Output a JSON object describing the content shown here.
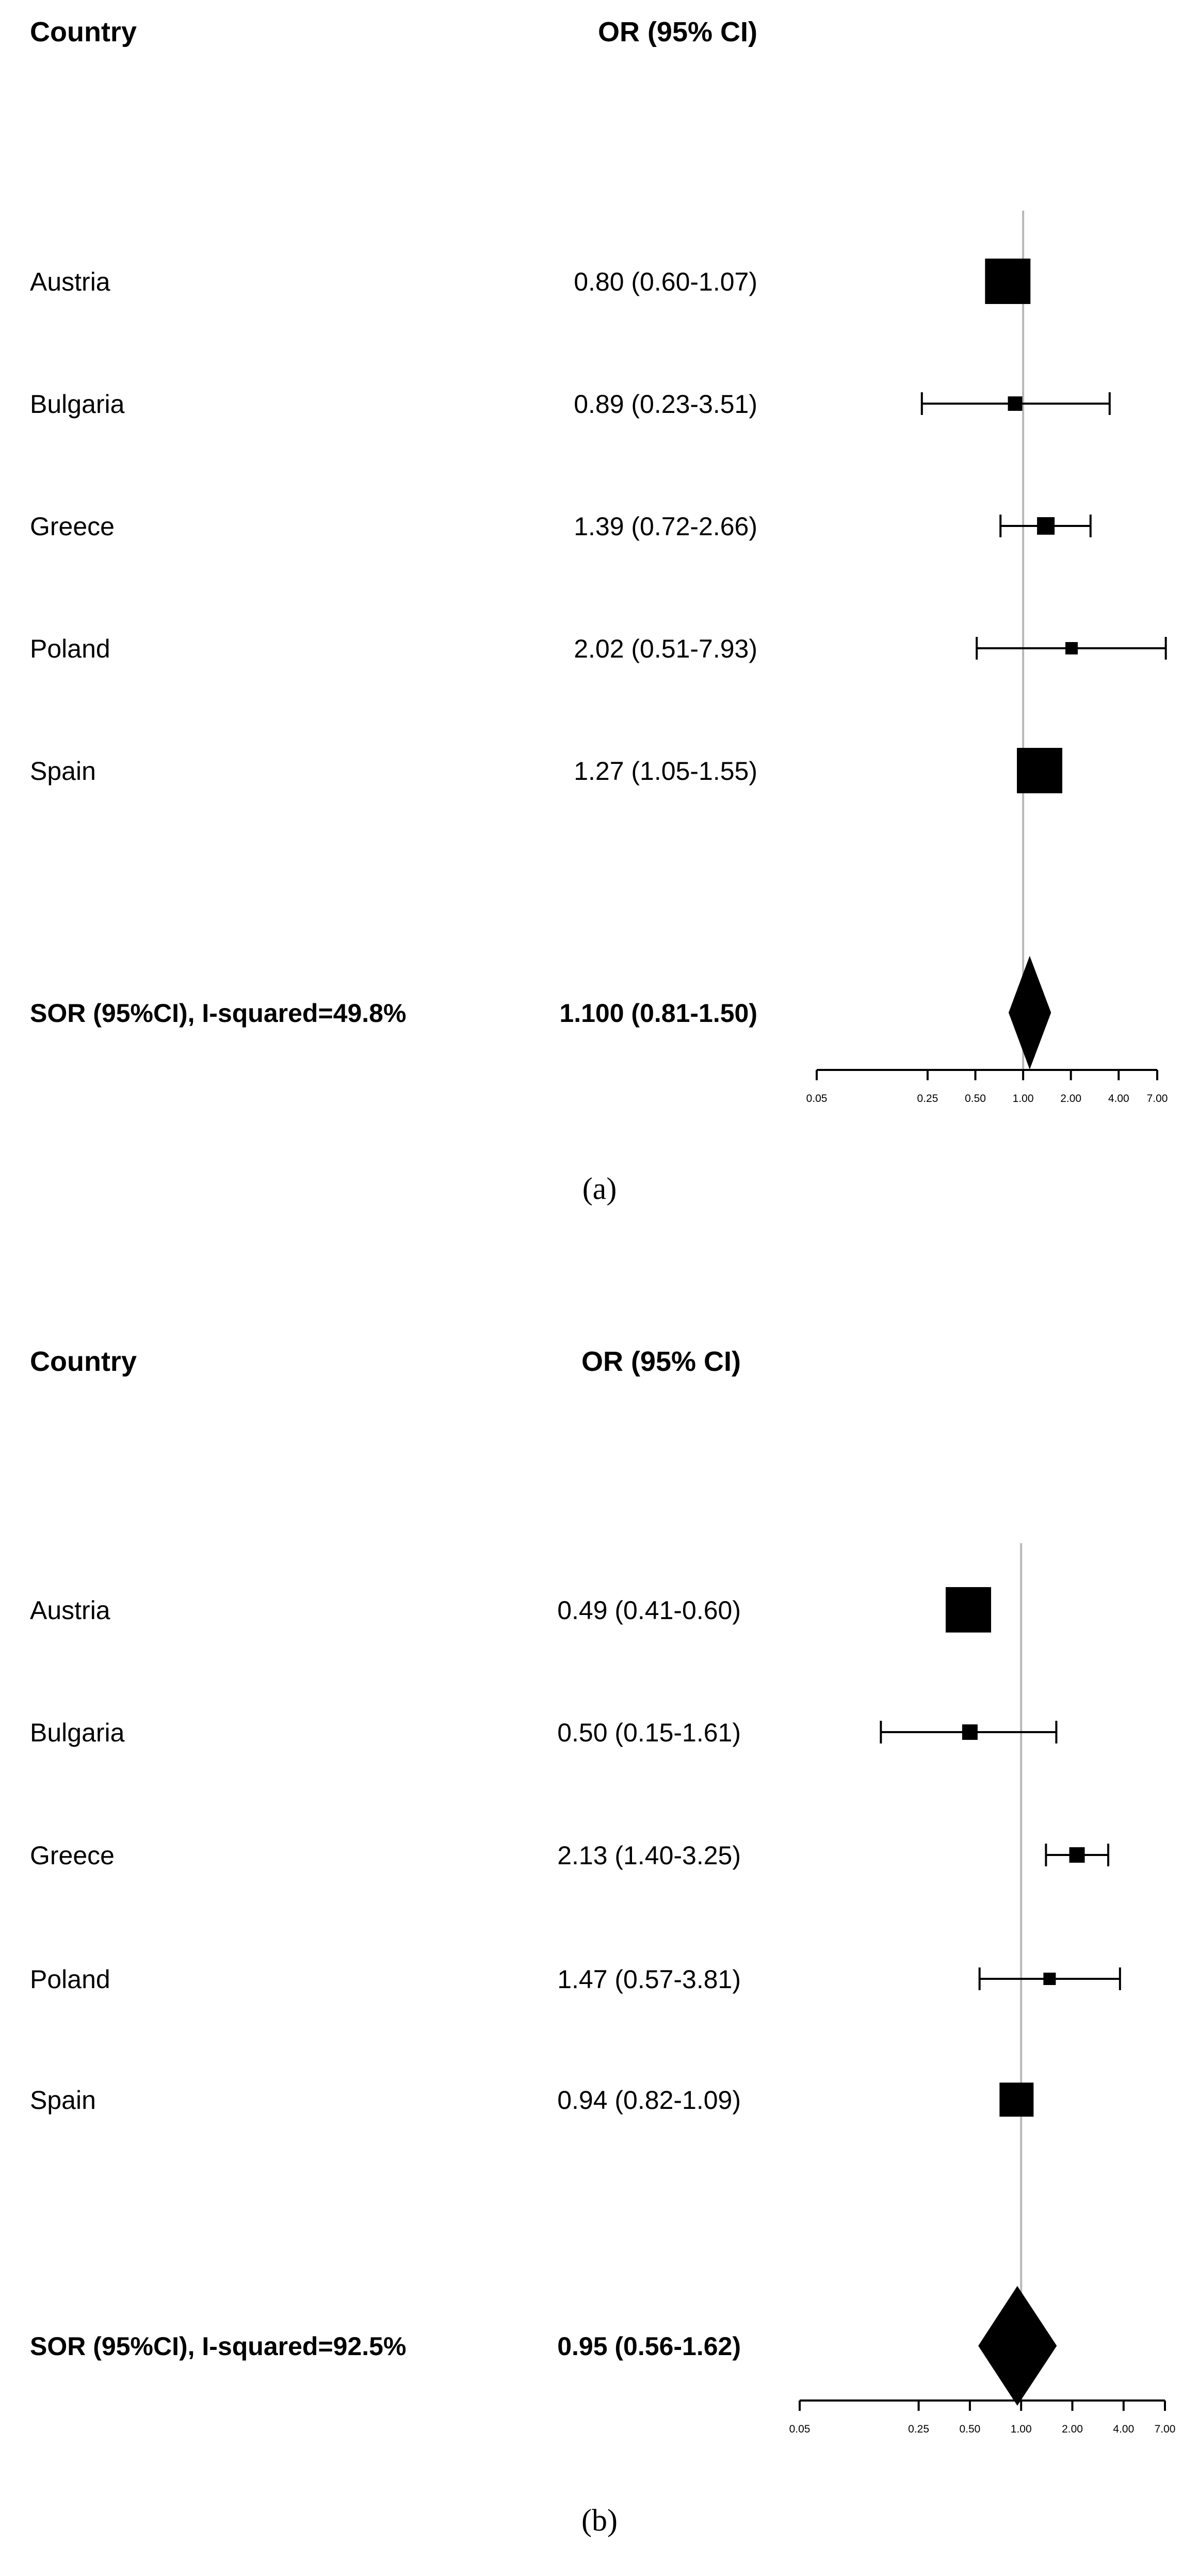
{
  "chart_data": [
    {
      "type": "forest",
      "caption": "(a)",
      "header": {
        "country": "Country",
        "or": "OR (95% CI)"
      },
      "x_scale": "log",
      "reference_value": 1.0,
      "x_ticks": [
        "0.05",
        "0.25",
        "0.50",
        "1.00",
        "2.00",
        "4.00",
        "7.00"
      ],
      "rows": [
        {
          "country": "Austria",
          "or": 0.8,
          "lo": 0.6,
          "hi": 1.07,
          "text": "0.80 (0.60-1.07)",
          "weight": "large"
        },
        {
          "country": "Bulgaria",
          "or": 0.89,
          "lo": 0.23,
          "hi": 3.51,
          "text": "0.89 (0.23-3.51)",
          "weight": "small"
        },
        {
          "country": "Greece",
          "or": 1.39,
          "lo": 0.72,
          "hi": 2.66,
          "text": "1.39 (0.72-2.66)",
          "weight": "medium"
        },
        {
          "country": "Poland",
          "or": 2.02,
          "lo": 0.51,
          "hi": 7.93,
          "text": "2.02 (0.51-7.93)",
          "weight": "tiny"
        },
        {
          "country": "Spain",
          "or": 1.27,
          "lo": 1.05,
          "hi": 1.55,
          "text": "1.27 (1.05-1.55)",
          "weight": "large"
        }
      ],
      "summary": {
        "label": "SOR (95%CI), I-squared=49.8%",
        "or": 1.1,
        "lo": 0.81,
        "hi": 1.5,
        "text": "1.100 (0.81-1.50)"
      }
    },
    {
      "type": "forest",
      "caption": "(b)",
      "header": {
        "country": "Country",
        "or": "OR (95% CI)"
      },
      "x_scale": "log",
      "reference_value": 1.0,
      "x_ticks": [
        "0.05",
        "0.25",
        "0.50",
        "1.00",
        "2.00",
        "4.00",
        "7.00"
      ],
      "rows": [
        {
          "country": "Austria",
          "or": 0.49,
          "lo": 0.41,
          "hi": 0.6,
          "text": "0.49 (0.41-0.60)",
          "weight": "large"
        },
        {
          "country": "Bulgaria",
          "or": 0.5,
          "lo": 0.15,
          "hi": 1.61,
          "text": "0.50 (0.15-1.61)",
          "weight": "small"
        },
        {
          "country": "Greece",
          "or": 2.13,
          "lo": 1.4,
          "hi": 3.25,
          "text": "2.13 (1.40-3.25)",
          "weight": "small"
        },
        {
          "country": "Poland",
          "or": 1.47,
          "lo": 0.57,
          "hi": 3.81,
          "text": "1.47 (0.57-3.81)",
          "weight": "tiny"
        },
        {
          "country": "Spain",
          "or": 0.94,
          "lo": 0.82,
          "hi": 1.09,
          "text": "0.94 (0.82-1.09)",
          "weight": "medium"
        }
      ],
      "summary": {
        "label": "SOR (95%CI), I-squared=92.5%",
        "or": 0.95,
        "lo": 0.56,
        "hi": 1.62,
        "text": "0.95 (0.56-1.62)"
      }
    }
  ]
}
